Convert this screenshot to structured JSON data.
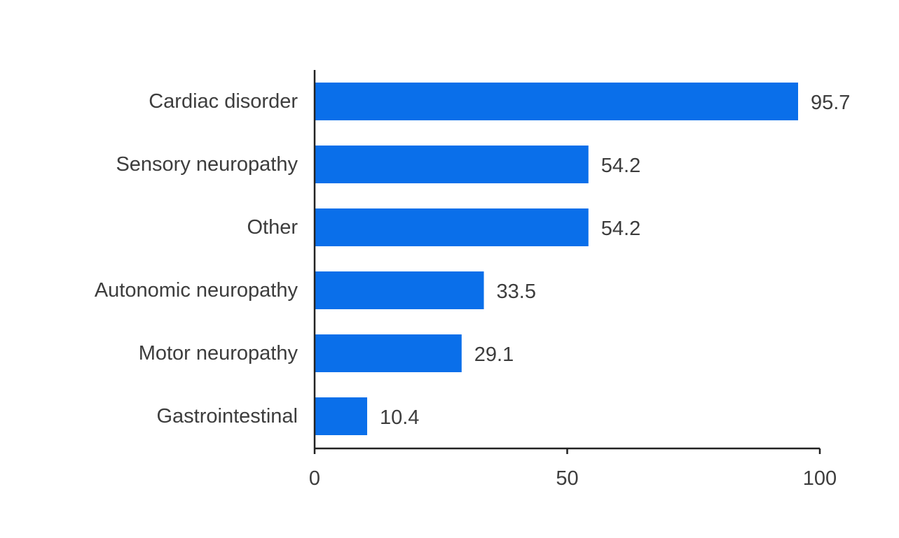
{
  "chart_data": {
    "type": "bar",
    "orientation": "horizontal",
    "categories": [
      "Cardiac disorder",
      "Sensory neuropathy",
      "Other",
      "Autonomic neuropathy",
      "Motor neuropathy",
      "Gastrointestinal"
    ],
    "values": [
      95.7,
      54.2,
      54.2,
      33.5,
      29.1,
      10.4
    ],
    "value_labels": [
      "95.7",
      "54.2",
      "54.2",
      "33.5",
      "29.1",
      "10.4"
    ],
    "xlim": [
      0,
      100
    ],
    "x_ticks": [
      0,
      50,
      100
    ],
    "x_tick_labels": [
      "0",
      "50",
      "100"
    ],
    "title": "",
    "xlabel": "",
    "ylabel": "",
    "grid": false,
    "colors": {
      "bar": "#0a6fea",
      "axis": "#222222",
      "text": "#3d3d3d"
    }
  }
}
